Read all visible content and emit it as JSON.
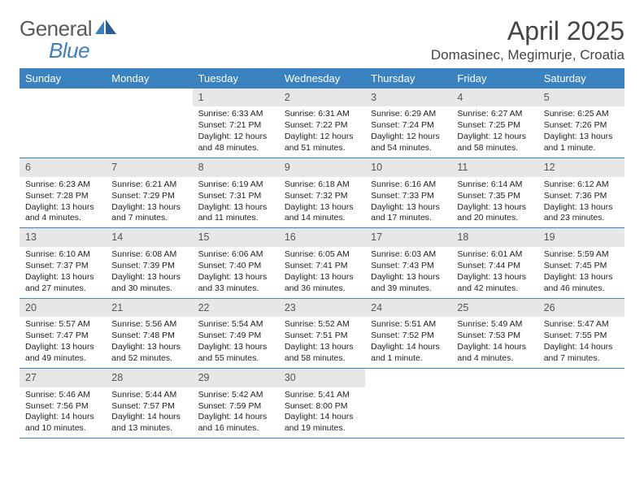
{
  "brand": {
    "part1": "General",
    "part2": "Blue"
  },
  "title": "April 2025",
  "location": "Domasinec, Megimurje, Croatia",
  "theme": {
    "header_bg": "#3b83c0",
    "header_fg": "#ffffff",
    "daynum_bg": "#e7e7e7",
    "rule": "#3b83c0"
  },
  "columns": [
    "Sunday",
    "Monday",
    "Tuesday",
    "Wednesday",
    "Thursday",
    "Friday",
    "Saturday"
  ],
  "weeks": [
    [
      {
        "n": "",
        "sr": "",
        "ss": "",
        "dl": ""
      },
      {
        "n": "",
        "sr": "",
        "ss": "",
        "dl": ""
      },
      {
        "n": "1",
        "sr": "Sunrise: 6:33 AM",
        "ss": "Sunset: 7:21 PM",
        "dl": "Daylight: 12 hours and 48 minutes."
      },
      {
        "n": "2",
        "sr": "Sunrise: 6:31 AM",
        "ss": "Sunset: 7:22 PM",
        "dl": "Daylight: 12 hours and 51 minutes."
      },
      {
        "n": "3",
        "sr": "Sunrise: 6:29 AM",
        "ss": "Sunset: 7:24 PM",
        "dl": "Daylight: 12 hours and 54 minutes."
      },
      {
        "n": "4",
        "sr": "Sunrise: 6:27 AM",
        "ss": "Sunset: 7:25 PM",
        "dl": "Daylight: 12 hours and 58 minutes."
      },
      {
        "n": "5",
        "sr": "Sunrise: 6:25 AM",
        "ss": "Sunset: 7:26 PM",
        "dl": "Daylight: 13 hours and 1 minute."
      }
    ],
    [
      {
        "n": "6",
        "sr": "Sunrise: 6:23 AM",
        "ss": "Sunset: 7:28 PM",
        "dl": "Daylight: 13 hours and 4 minutes."
      },
      {
        "n": "7",
        "sr": "Sunrise: 6:21 AM",
        "ss": "Sunset: 7:29 PM",
        "dl": "Daylight: 13 hours and 7 minutes."
      },
      {
        "n": "8",
        "sr": "Sunrise: 6:19 AM",
        "ss": "Sunset: 7:31 PM",
        "dl": "Daylight: 13 hours and 11 minutes."
      },
      {
        "n": "9",
        "sr": "Sunrise: 6:18 AM",
        "ss": "Sunset: 7:32 PM",
        "dl": "Daylight: 13 hours and 14 minutes."
      },
      {
        "n": "10",
        "sr": "Sunrise: 6:16 AM",
        "ss": "Sunset: 7:33 PM",
        "dl": "Daylight: 13 hours and 17 minutes."
      },
      {
        "n": "11",
        "sr": "Sunrise: 6:14 AM",
        "ss": "Sunset: 7:35 PM",
        "dl": "Daylight: 13 hours and 20 minutes."
      },
      {
        "n": "12",
        "sr": "Sunrise: 6:12 AM",
        "ss": "Sunset: 7:36 PM",
        "dl": "Daylight: 13 hours and 23 minutes."
      }
    ],
    [
      {
        "n": "13",
        "sr": "Sunrise: 6:10 AM",
        "ss": "Sunset: 7:37 PM",
        "dl": "Daylight: 13 hours and 27 minutes."
      },
      {
        "n": "14",
        "sr": "Sunrise: 6:08 AM",
        "ss": "Sunset: 7:39 PM",
        "dl": "Daylight: 13 hours and 30 minutes."
      },
      {
        "n": "15",
        "sr": "Sunrise: 6:06 AM",
        "ss": "Sunset: 7:40 PM",
        "dl": "Daylight: 13 hours and 33 minutes."
      },
      {
        "n": "16",
        "sr": "Sunrise: 6:05 AM",
        "ss": "Sunset: 7:41 PM",
        "dl": "Daylight: 13 hours and 36 minutes."
      },
      {
        "n": "17",
        "sr": "Sunrise: 6:03 AM",
        "ss": "Sunset: 7:43 PM",
        "dl": "Daylight: 13 hours and 39 minutes."
      },
      {
        "n": "18",
        "sr": "Sunrise: 6:01 AM",
        "ss": "Sunset: 7:44 PM",
        "dl": "Daylight: 13 hours and 42 minutes."
      },
      {
        "n": "19",
        "sr": "Sunrise: 5:59 AM",
        "ss": "Sunset: 7:45 PM",
        "dl": "Daylight: 13 hours and 46 minutes."
      }
    ],
    [
      {
        "n": "20",
        "sr": "Sunrise: 5:57 AM",
        "ss": "Sunset: 7:47 PM",
        "dl": "Daylight: 13 hours and 49 minutes."
      },
      {
        "n": "21",
        "sr": "Sunrise: 5:56 AM",
        "ss": "Sunset: 7:48 PM",
        "dl": "Daylight: 13 hours and 52 minutes."
      },
      {
        "n": "22",
        "sr": "Sunrise: 5:54 AM",
        "ss": "Sunset: 7:49 PM",
        "dl": "Daylight: 13 hours and 55 minutes."
      },
      {
        "n": "23",
        "sr": "Sunrise: 5:52 AM",
        "ss": "Sunset: 7:51 PM",
        "dl": "Daylight: 13 hours and 58 minutes."
      },
      {
        "n": "24",
        "sr": "Sunrise: 5:51 AM",
        "ss": "Sunset: 7:52 PM",
        "dl": "Daylight: 14 hours and 1 minute."
      },
      {
        "n": "25",
        "sr": "Sunrise: 5:49 AM",
        "ss": "Sunset: 7:53 PM",
        "dl": "Daylight: 14 hours and 4 minutes."
      },
      {
        "n": "26",
        "sr": "Sunrise: 5:47 AM",
        "ss": "Sunset: 7:55 PM",
        "dl": "Daylight: 14 hours and 7 minutes."
      }
    ],
    [
      {
        "n": "27",
        "sr": "Sunrise: 5:46 AM",
        "ss": "Sunset: 7:56 PM",
        "dl": "Daylight: 14 hours and 10 minutes."
      },
      {
        "n": "28",
        "sr": "Sunrise: 5:44 AM",
        "ss": "Sunset: 7:57 PM",
        "dl": "Daylight: 14 hours and 13 minutes."
      },
      {
        "n": "29",
        "sr": "Sunrise: 5:42 AM",
        "ss": "Sunset: 7:59 PM",
        "dl": "Daylight: 14 hours and 16 minutes."
      },
      {
        "n": "30",
        "sr": "Sunrise: 5:41 AM",
        "ss": "Sunset: 8:00 PM",
        "dl": "Daylight: 14 hours and 19 minutes."
      },
      {
        "n": "",
        "sr": "",
        "ss": "",
        "dl": ""
      },
      {
        "n": "",
        "sr": "",
        "ss": "",
        "dl": ""
      },
      {
        "n": "",
        "sr": "",
        "ss": "",
        "dl": ""
      }
    ]
  ]
}
